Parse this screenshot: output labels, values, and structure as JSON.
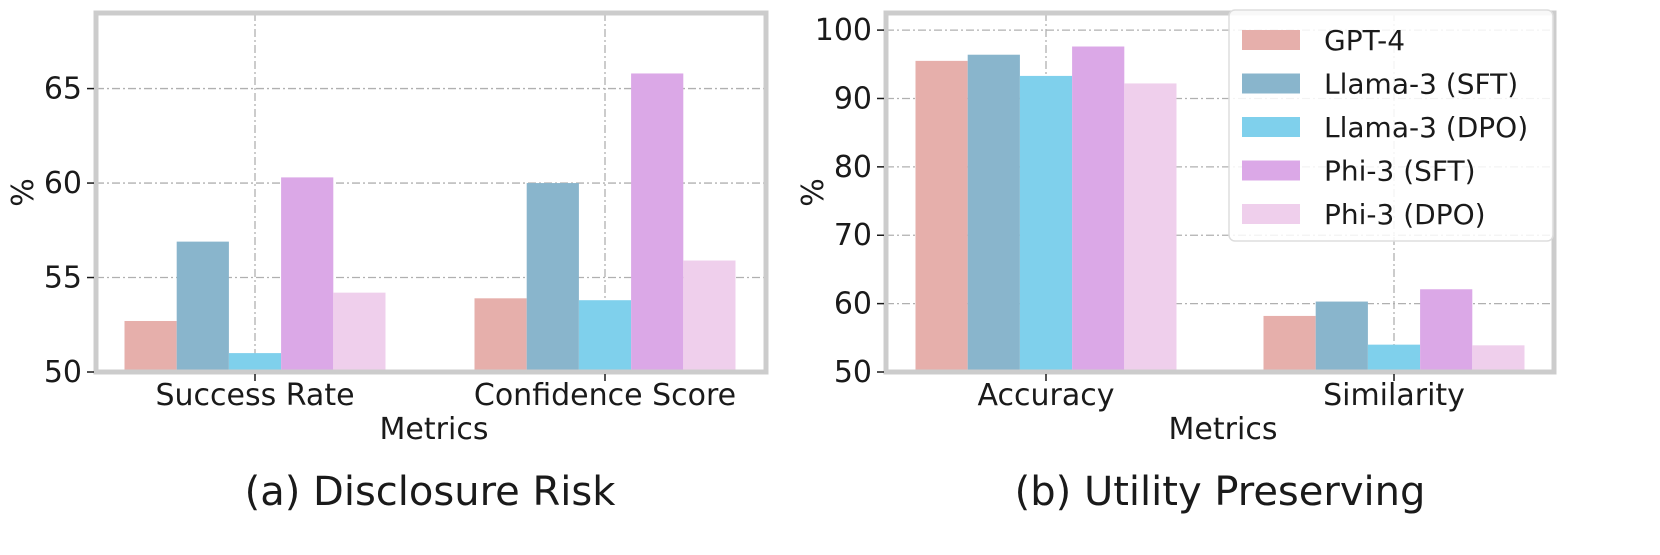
{
  "chart_data": [
    {
      "type": "bar",
      "caption": "(a) Disclosure Risk",
      "xlabel": "Metrics",
      "ylabel": "%",
      "ylim": [
        50,
        69
      ],
      "yticks": [
        "50",
        "55",
        "60",
        "65"
      ],
      "categories": [
        "Success Rate",
        "Confidence Score"
      ],
      "grid": true,
      "series": [
        {
          "name": "GPT-4",
          "color": "#e6afab",
          "values": [
            52.7,
            53.9
          ]
        },
        {
          "name": "Llama-3 (SFT)",
          "color": "#89b5cc",
          "values": [
            56.9,
            60.0
          ]
        },
        {
          "name": "Llama-3 (DPO)",
          "color": "#7fd0ec",
          "values": [
            51.0,
            53.8
          ]
        },
        {
          "name": "Phi-3 (SFT)",
          "color": "#dba8e7",
          "values": [
            60.3,
            65.8
          ]
        },
        {
          "name": "Phi-3 (DPO)",
          "color": "#efcfec",
          "values": [
            54.2,
            55.9
          ]
        }
      ]
    },
    {
      "type": "bar",
      "caption": "(b) Utility Preserving",
      "xlabel": "Metrics",
      "ylabel": "%",
      "ylim": [
        50,
        102.5
      ],
      "yticks": [
        "50",
        "60",
        "70",
        "80",
        "90",
        "100"
      ],
      "categories": [
        "Accuracy",
        "Similarity"
      ],
      "grid": true,
      "legend_position": "top-right",
      "series": [
        {
          "name": "GPT-4",
          "color": "#e6afab",
          "values": [
            95.5,
            58.2
          ]
        },
        {
          "name": "Llama-3 (SFT)",
          "color": "#89b5cc",
          "values": [
            96.4,
            60.3
          ]
        },
        {
          "name": "Llama-3 (DPO)",
          "color": "#7fd0ec",
          "values": [
            93.3,
            54.0
          ]
        },
        {
          "name": "Phi-3 (SFT)",
          "color": "#dba8e7",
          "values": [
            97.6,
            62.1
          ]
        },
        {
          "name": "Phi-3 (DPO)",
          "color": "#efcfec",
          "values": [
            92.2,
            53.9
          ]
        }
      ]
    }
  ]
}
